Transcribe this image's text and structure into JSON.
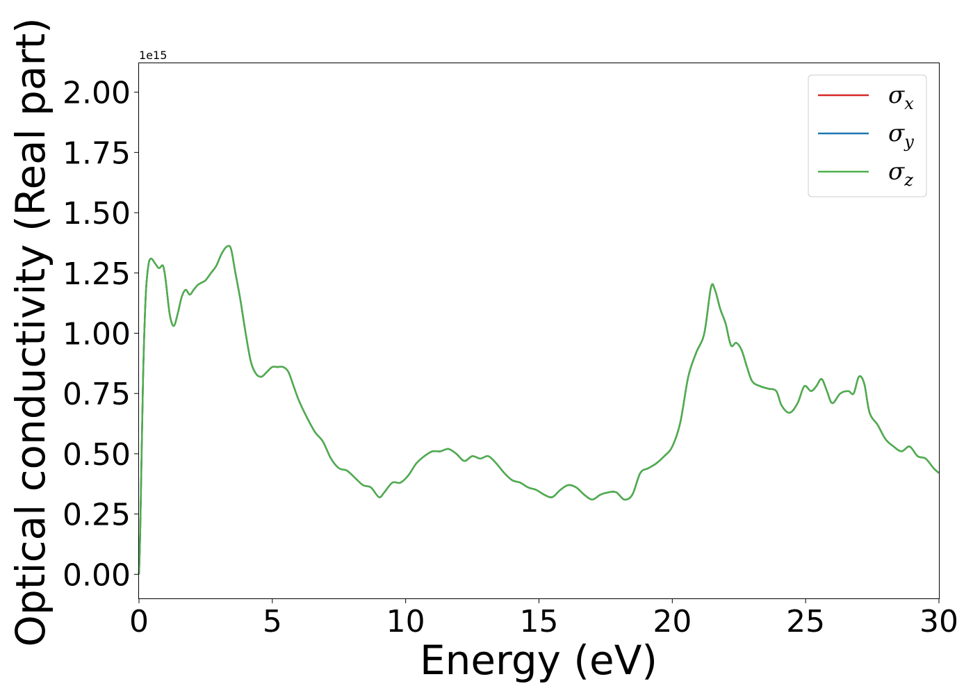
{
  "chart_data": {
    "type": "line",
    "xlabel": "Energy (eV)",
    "ylabel": "Optical conductivity (Real part)",
    "y_offset_label": "1e15",
    "xlim": [
      0,
      30
    ],
    "ylim": [
      -0.1,
      2.12
    ],
    "x_ticks": [
      0,
      5,
      10,
      15,
      20,
      25,
      30
    ],
    "x_tick_labels": [
      "0",
      "5",
      "10",
      "15",
      "20",
      "25",
      "30"
    ],
    "y_ticks": [
      0,
      0.25,
      0.5,
      0.75,
      1.0,
      1.25,
      1.5,
      1.75,
      2.0
    ],
    "y_tick_labels": [
      "0.00",
      "0.25",
      "0.50",
      "0.75",
      "1.00",
      "1.25",
      "1.50",
      "1.75",
      "2.00"
    ],
    "grid": false,
    "legend_position": "top-right",
    "x": [
      0,
      0.05,
      0.15,
      0.25,
      0.35,
      0.45,
      0.6,
      0.75,
      0.9,
      1.0,
      1.15,
      1.3,
      1.45,
      1.6,
      1.75,
      1.9,
      2.05,
      2.2,
      2.35,
      2.5,
      2.7,
      2.9,
      3.1,
      3.3,
      3.45,
      3.6,
      3.8,
      4.0,
      4.2,
      4.4,
      4.6,
      4.8,
      5.0,
      5.2,
      5.4,
      5.6,
      5.8,
      6.0,
      6.3,
      6.6,
      6.9,
      7.2,
      7.5,
      7.8,
      8.1,
      8.4,
      8.7,
      9.0,
      9.2,
      9.5,
      9.8,
      10.1,
      10.4,
      10.7,
      11.0,
      11.3,
      11.6,
      11.9,
      12.2,
      12.5,
      12.8,
      13.1,
      13.4,
      13.7,
      14.0,
      14.3,
      14.6,
      14.9,
      15.2,
      15.5,
      15.8,
      16.1,
      16.4,
      16.7,
      17.0,
      17.3,
      17.6,
      17.9,
      18.2,
      18.5,
      18.8,
      19.1,
      19.4,
      19.7,
      20.0,
      20.3,
      20.6,
      20.9,
      21.2,
      21.45,
      21.6,
      21.8,
      22.0,
      22.2,
      22.4,
      22.6,
      22.8,
      23.0,
      23.3,
      23.6,
      23.9,
      24.1,
      24.4,
      24.7,
      24.95,
      25.2,
      25.4,
      25.6,
      25.8,
      26.0,
      26.3,
      26.6,
      26.8,
      27.0,
      27.2,
      27.4,
      27.7,
      28.0,
      28.3,
      28.6,
      28.9,
      29.2,
      29.5,
      29.8,
      30.0
    ],
    "series": [
      {
        "name": "σx",
        "color": "#d62728",
        "values": [
          0.0,
          0.2,
          0.8,
          1.15,
          1.28,
          1.31,
          1.29,
          1.27,
          1.28,
          1.22,
          1.08,
          1.03,
          1.08,
          1.15,
          1.18,
          1.16,
          1.18,
          1.2,
          1.21,
          1.22,
          1.25,
          1.28,
          1.33,
          1.36,
          1.35,
          1.26,
          1.14,
          1.0,
          0.88,
          0.83,
          0.82,
          0.84,
          0.86,
          0.86,
          0.86,
          0.84,
          0.78,
          0.72,
          0.65,
          0.59,
          0.55,
          0.48,
          0.44,
          0.43,
          0.4,
          0.37,
          0.36,
          0.32,
          0.34,
          0.38,
          0.38,
          0.41,
          0.46,
          0.49,
          0.51,
          0.51,
          0.52,
          0.5,
          0.47,
          0.49,
          0.48,
          0.49,
          0.46,
          0.42,
          0.39,
          0.38,
          0.36,
          0.35,
          0.33,
          0.32,
          0.35,
          0.37,
          0.36,
          0.33,
          0.31,
          0.33,
          0.34,
          0.34,
          0.31,
          0.33,
          0.42,
          0.44,
          0.46,
          0.49,
          0.53,
          0.63,
          0.82,
          0.92,
          1.0,
          1.19,
          1.18,
          1.1,
          1.04,
          0.95,
          0.96,
          0.93,
          0.86,
          0.8,
          0.78,
          0.77,
          0.76,
          0.7,
          0.67,
          0.71,
          0.78,
          0.76,
          0.78,
          0.81,
          0.76,
          0.71,
          0.75,
          0.76,
          0.75,
          0.82,
          0.79,
          0.67,
          0.62,
          0.56,
          0.53,
          0.51,
          0.53,
          0.49,
          0.48,
          0.44,
          0.42
        ]
      },
      {
        "name": "σy",
        "color": "#1f77b4",
        "values": [
          0.0,
          0.2,
          0.8,
          1.15,
          1.28,
          1.31,
          1.29,
          1.27,
          1.28,
          1.22,
          1.08,
          1.03,
          1.08,
          1.15,
          1.18,
          1.16,
          1.18,
          1.2,
          1.21,
          1.22,
          1.25,
          1.28,
          1.33,
          1.36,
          1.35,
          1.26,
          1.14,
          1.0,
          0.88,
          0.83,
          0.82,
          0.84,
          0.86,
          0.86,
          0.86,
          0.84,
          0.78,
          0.72,
          0.65,
          0.59,
          0.55,
          0.48,
          0.44,
          0.43,
          0.4,
          0.37,
          0.36,
          0.32,
          0.34,
          0.38,
          0.38,
          0.41,
          0.46,
          0.49,
          0.51,
          0.51,
          0.52,
          0.5,
          0.47,
          0.49,
          0.48,
          0.49,
          0.46,
          0.42,
          0.39,
          0.38,
          0.36,
          0.35,
          0.33,
          0.32,
          0.35,
          0.37,
          0.36,
          0.33,
          0.31,
          0.33,
          0.34,
          0.34,
          0.31,
          0.33,
          0.42,
          0.44,
          0.46,
          0.49,
          0.53,
          0.63,
          0.82,
          0.92,
          1.0,
          1.19,
          1.18,
          1.1,
          1.04,
          0.95,
          0.96,
          0.93,
          0.86,
          0.8,
          0.78,
          0.77,
          0.76,
          0.7,
          0.67,
          0.71,
          0.78,
          0.76,
          0.78,
          0.81,
          0.76,
          0.71,
          0.75,
          0.76,
          0.75,
          0.82,
          0.79,
          0.67,
          0.62,
          0.56,
          0.53,
          0.51,
          0.53,
          0.49,
          0.48,
          0.44,
          0.42
        ]
      },
      {
        "name": "σz",
        "color": "#4daf4a",
        "values": [
          0.0,
          0.2,
          0.8,
          1.15,
          1.28,
          1.31,
          1.29,
          1.27,
          1.28,
          1.22,
          1.08,
          1.03,
          1.08,
          1.15,
          1.18,
          1.16,
          1.18,
          1.2,
          1.21,
          1.22,
          1.25,
          1.28,
          1.33,
          1.36,
          1.35,
          1.26,
          1.14,
          1.0,
          0.88,
          0.83,
          0.82,
          0.84,
          0.86,
          0.86,
          0.86,
          0.84,
          0.78,
          0.72,
          0.65,
          0.59,
          0.55,
          0.48,
          0.44,
          0.43,
          0.4,
          0.37,
          0.36,
          0.32,
          0.34,
          0.38,
          0.38,
          0.41,
          0.46,
          0.49,
          0.51,
          0.51,
          0.52,
          0.5,
          0.47,
          0.49,
          0.48,
          0.49,
          0.46,
          0.42,
          0.39,
          0.38,
          0.36,
          0.35,
          0.33,
          0.32,
          0.35,
          0.37,
          0.36,
          0.33,
          0.31,
          0.33,
          0.34,
          0.34,
          0.31,
          0.33,
          0.42,
          0.44,
          0.46,
          0.49,
          0.53,
          0.63,
          0.82,
          0.92,
          1.0,
          1.19,
          1.18,
          1.1,
          1.04,
          0.95,
          0.96,
          0.93,
          0.86,
          0.8,
          0.78,
          0.77,
          0.76,
          0.7,
          0.67,
          0.71,
          0.78,
          0.76,
          0.78,
          0.81,
          0.76,
          0.71,
          0.75,
          0.76,
          0.75,
          0.82,
          0.79,
          0.67,
          0.62,
          0.56,
          0.53,
          0.51,
          0.53,
          0.49,
          0.48,
          0.44,
          0.42
        ]
      }
    ],
    "legend": [
      {
        "symbol": "σ",
        "sub": "x"
      },
      {
        "symbol": "σ",
        "sub": "y"
      },
      {
        "symbol": "σ",
        "sub": "z"
      }
    ]
  }
}
